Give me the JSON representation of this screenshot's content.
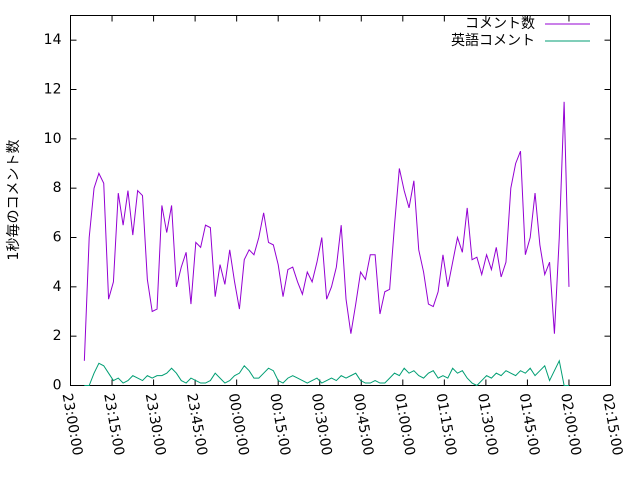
{
  "chart_data": {
    "type": "line",
    "y_label": "1秒毎のコメント数",
    "x": [
      "23:05:00",
      "23:06:45",
      "23:08:30",
      "23:10:15",
      "23:12:00",
      "23:13:45",
      "23:15:30",
      "23:17:15",
      "23:19:00",
      "23:20:45",
      "23:22:30",
      "23:24:15",
      "23:26:00",
      "23:27:45",
      "23:29:30",
      "23:31:15",
      "23:33:00",
      "23:34:45",
      "23:36:30",
      "23:38:15",
      "23:40:00",
      "23:41:45",
      "23:43:30",
      "23:45:15",
      "23:47:00",
      "23:48:45",
      "23:50:30",
      "23:52:15",
      "23:54:00",
      "23:55:45",
      "23:57:30",
      "23:59:15",
      "00:01:00",
      "00:02:45",
      "00:04:30",
      "00:06:15",
      "00:08:00",
      "00:09:45",
      "00:11:30",
      "00:13:15",
      "00:15:00",
      "00:16:45",
      "00:18:30",
      "00:20:15",
      "00:22:00",
      "00:23:45",
      "00:25:30",
      "00:27:15",
      "00:29:00",
      "00:30:45",
      "00:32:30",
      "00:34:15",
      "00:36:00",
      "00:37:45",
      "00:39:30",
      "00:41:15",
      "00:43:00",
      "00:44:45",
      "00:46:30",
      "00:48:15",
      "00:50:00",
      "00:51:45",
      "00:53:30",
      "00:55:15",
      "00:57:00",
      "00:58:45",
      "01:00:30",
      "01:02:15",
      "01:04:00",
      "01:05:45",
      "01:07:30",
      "01:09:15",
      "01:11:00",
      "01:12:45",
      "01:14:30",
      "01:16:15",
      "01:18:00",
      "01:19:45",
      "01:21:30",
      "01:23:15",
      "01:25:00",
      "01:26:45",
      "01:28:30",
      "01:30:15",
      "01:32:00",
      "01:33:45",
      "01:35:30",
      "01:37:15",
      "01:39:00",
      "01:40:45",
      "01:42:30",
      "01:44:15",
      "01:46:00",
      "01:47:45",
      "01:49:30",
      "01:51:15",
      "01:53:00",
      "01:54:45",
      "01:56:30",
      "01:58:15",
      "02:00:00"
    ],
    "series": [
      {
        "name": "コメント数",
        "color": "#9400d3",
        "values": [
          1.0,
          6.0,
          8.0,
          8.6,
          8.2,
          3.5,
          4.2,
          7.8,
          6.5,
          7.9,
          6.1,
          7.9,
          7.7,
          4.3,
          3.0,
          3.1,
          7.3,
          6.2,
          7.3,
          4.0,
          4.8,
          5.4,
          3.3,
          5.8,
          5.6,
          6.5,
          6.4,
          3.6,
          4.9,
          4.1,
          5.5,
          4.2,
          3.1,
          5.1,
          5.5,
          5.3,
          6.0,
          7.0,
          5.8,
          5.7,
          4.9,
          3.6,
          4.7,
          4.8,
          4.2,
          3.7,
          4.6,
          4.2,
          5.0,
          6.0,
          3.5,
          4.0,
          4.8,
          6.5,
          3.5,
          2.1,
          3.3,
          4.6,
          4.3,
          5.3,
          5.3,
          2.9,
          3.8,
          3.9,
          6.5,
          8.8,
          7.9,
          7.2,
          8.3,
          5.5,
          4.6,
          3.3,
          3.2,
          3.8,
          5.3,
          4.0,
          5.0,
          6.0,
          5.4,
          7.2,
          5.1,
          5.2,
          4.5,
          5.3,
          4.7,
          5.6,
          4.4,
          5.0,
          8.0,
          9.0,
          9.5,
          5.3,
          6.0,
          7.8,
          5.7,
          4.5,
          5.0,
          2.1,
          6.0,
          11.5,
          4.0
        ]
      },
      {
        "name": "英語コメント",
        "color": "#009e73",
        "values": [
          0,
          0,
          0.5,
          0.9,
          0.8,
          0.5,
          0.2,
          0.3,
          0.1,
          0.2,
          0.4,
          0.3,
          0.2,
          0.4,
          0.3,
          0.4,
          0.4,
          0.5,
          0.7,
          0.5,
          0.2,
          0.1,
          0.3,
          0.2,
          0.1,
          0.1,
          0.2,
          0.5,
          0.3,
          0.1,
          0.2,
          0.4,
          0.5,
          0.8,
          0.6,
          0.3,
          0.3,
          0.5,
          0.7,
          0.6,
          0.2,
          0.1,
          0.3,
          0.4,
          0.3,
          0.2,
          0.1,
          0.2,
          0.3,
          0.1,
          0.2,
          0.3,
          0.2,
          0.4,
          0.3,
          0.4,
          0.5,
          0.2,
          0.1,
          0.1,
          0.2,
          0.1,
          0.1,
          0.3,
          0.5,
          0.4,
          0.7,
          0.5,
          0.6,
          0.4,
          0.3,
          0.5,
          0.6,
          0.3,
          0.4,
          0.3,
          0.7,
          0.5,
          0.6,
          0.3,
          0.1,
          0.0,
          0.2,
          0.4,
          0.3,
          0.5,
          0.4,
          0.6,
          0.5,
          0.4,
          0.6,
          0.5,
          0.7,
          0.4,
          0.6,
          0.8,
          0.2,
          0.6,
          1.0,
          0.0,
          0
        ]
      }
    ],
    "xlim": [
      "23:00:00",
      "02:15:00"
    ],
    "xticks": [
      "23:00:00",
      "23:15:00",
      "23:30:00",
      "23:45:00",
      "00:00:00",
      "00:15:00",
      "00:30:00",
      "00:45:00",
      "01:00:00",
      "01:15:00",
      "01:30:00",
      "01:45:00",
      "02:00:00",
      "02:15:00"
    ],
    "ylim": [
      0,
      15
    ],
    "yticks": [
      0,
      2,
      4,
      6,
      8,
      10,
      12,
      14
    ],
    "legend": "top-right"
  }
}
